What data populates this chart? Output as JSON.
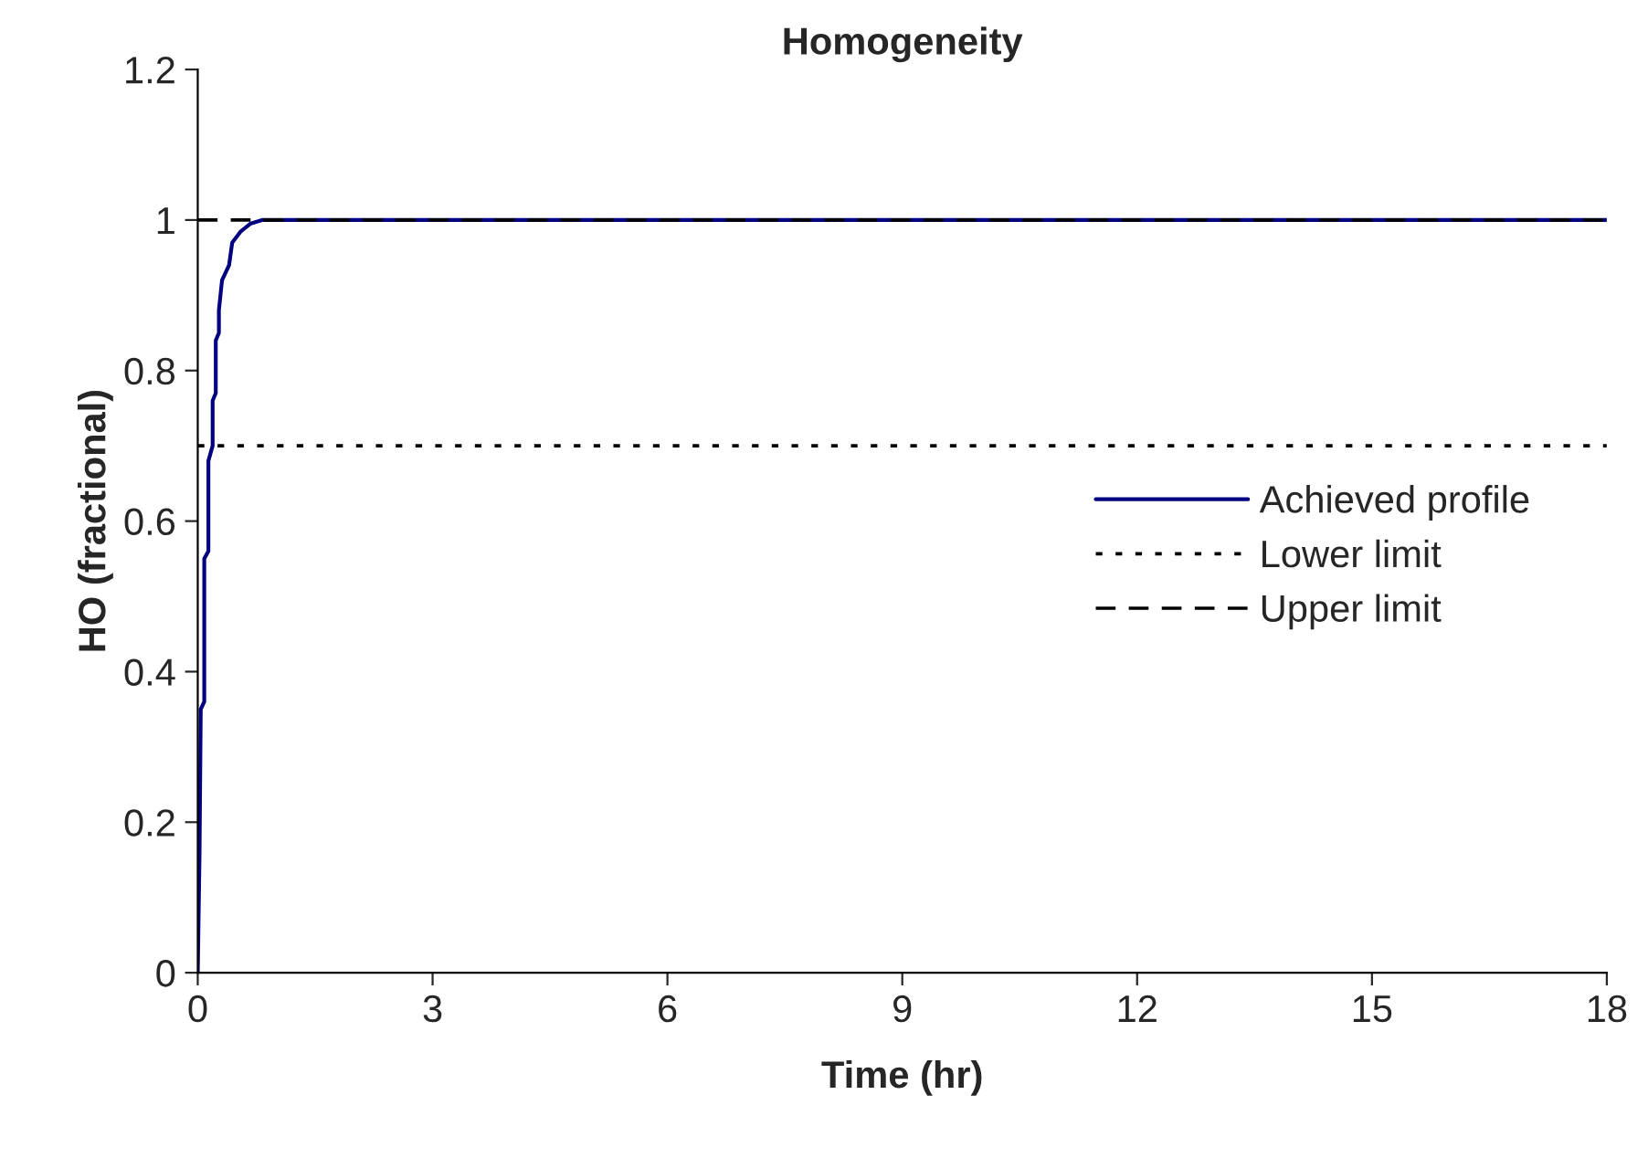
{
  "chart_data": {
    "type": "line",
    "title": "Homogeneity",
    "xlabel": "Time (hr)",
    "ylabel": "HO (fractional)",
    "xlim": [
      0,
      18
    ],
    "xticks": [
      0,
      3,
      6,
      9,
      12,
      15,
      18
    ],
    "ylim": [
      0,
      1.2
    ],
    "yticks": [
      0,
      0.2,
      0.4,
      0.6,
      0.8,
      1,
      1.2
    ],
    "series": [
      {
        "name": "Achieved profile",
        "color": "#000080",
        "x": [
          0,
          0.023,
          0.038,
          0.083,
          0.083,
          0.136,
          0.136,
          0.19,
          0.19,
          0.23,
          0.23,
          0.27,
          0.27,
          0.31,
          0.4,
          0.44,
          0.55,
          0.67,
          0.82,
          18
        ],
        "values": [
          0,
          0.16,
          0.35,
          0.36,
          0.55,
          0.56,
          0.68,
          0.7,
          0.76,
          0.77,
          0.84,
          0.85,
          0.88,
          0.92,
          0.94,
          0.97,
          0.985,
          0.995,
          1.0,
          1.0
        ]
      }
    ],
    "ref_lines": [
      {
        "axis": "y",
        "value": 0.7,
        "label": "Lower limit",
        "color": "#000000",
        "line_style": "dotted"
      },
      {
        "axis": "y",
        "value": 1,
        "label": "Upper limit",
        "color": "#000000",
        "line_style": "dashed"
      }
    ],
    "legend": "right",
    "grid": false,
    "line_style": "solid",
    "marker": "none"
  }
}
